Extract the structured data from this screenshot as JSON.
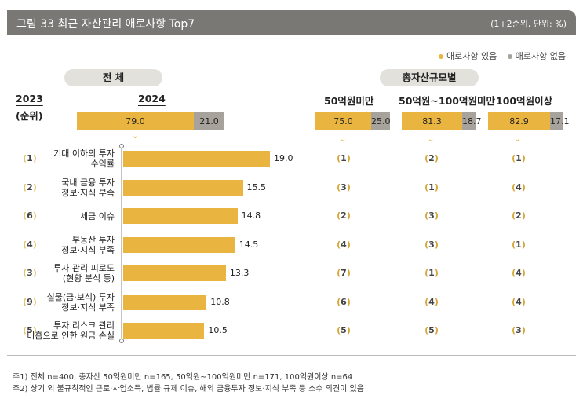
{
  "title": "그림 33  최근 자산관리 애로사항 Top7",
  "unit": "(1+2순위, 단위:  %)",
  "legend": [
    {
      "label": "애로사항 있음",
      "color": "#e9b440"
    },
    {
      "label": "애로사항 없음",
      "color": "#a7a29b"
    }
  ],
  "labels": {
    "total": "전 체",
    "by_asset": "총자산규모별",
    "y2023": "2023",
    "rank_label": "(순위)",
    "y2024": "2024",
    "g1": "50억원미만",
    "g2": "50억원~100억원미만",
    "g3": "100억원이상"
  },
  "chart_data": {
    "type": "bar",
    "summary": {
      "total": {
        "yes": "79.0",
        "no": "21.0"
      },
      "g1": {
        "yes": "75.0",
        "no": "25.0"
      },
      "g2": {
        "yes": "81.3",
        "no": "18.7"
      },
      "g3": {
        "yes": "82.9",
        "no": "17.1"
      }
    },
    "categories": [
      [
        "기대 이하의 투자",
        "수익률"
      ],
      [
        "국내 금융 투자",
        "정보·지식 부족"
      ],
      [
        "세금 이슈"
      ],
      [
        "부동산 투자",
        "정보·지식 부족"
      ],
      [
        "투자 관리 피로도",
        "(현황 분석 등)"
      ],
      [
        "실물(금·보석) 투자",
        "정보·지식 부족"
      ],
      [
        "투자 리스크 관리",
        "미흡으로 인한 원금 손실"
      ]
    ],
    "values": [
      19.0,
      15.5,
      14.8,
      14.5,
      13.3,
      10.8,
      10.5
    ],
    "value_labels": [
      "19.0",
      "15.5",
      "14.8",
      "14.5",
      "13.3",
      "10.8",
      "10.5"
    ],
    "rank_2023": [
      "1",
      "2",
      "6",
      "4",
      "3",
      "9",
      "5"
    ],
    "rank_g1": [
      "1",
      "3",
      "2",
      "4",
      "7",
      "6",
      "5"
    ],
    "rank_g2": [
      "2",
      "1",
      "3",
      "3",
      "1",
      "4",
      "5"
    ],
    "rank_g3": [
      "1",
      "4",
      "2",
      "1",
      "4",
      "4",
      "3"
    ],
    "xlim": [
      0,
      19.0
    ]
  },
  "notes": [
    "주1) 전체 n=400, 총자산 50억원미만 n=165, 50억원~100억원미만 n=171, 100억원이상 n=64",
    "주2) 상기 외 불규칙적인 근로·사업소득, 법률·규제 이슈, 해외 금융투자 정보·지식 부족 등 소수 의견이 있음"
  ]
}
